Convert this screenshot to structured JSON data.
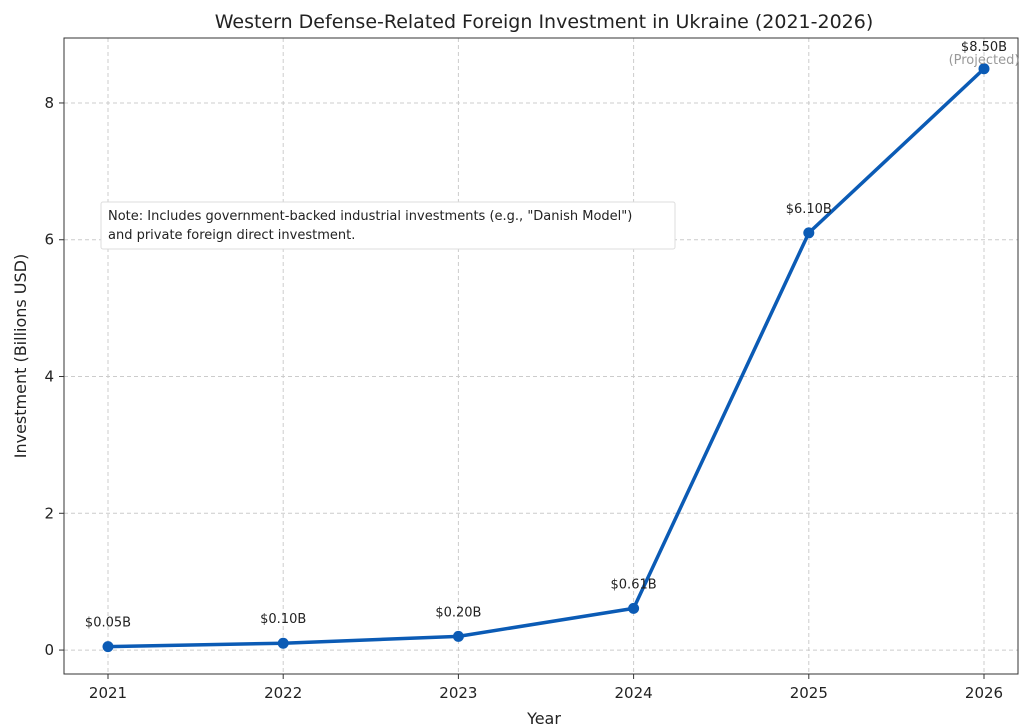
{
  "chart_data": {
    "type": "line",
    "title": "Western Defense-Related Foreign Investment in Ukraine (2021-2026)",
    "xlabel": "Year",
    "ylabel": "Investment (Billions USD)",
    "x": [
      "2021",
      "2022",
      "2023",
      "2024",
      "2025",
      "2026"
    ],
    "values": [
      0.05,
      0.1,
      0.2,
      0.61,
      6.1,
      8.5
    ],
    "data_labels": [
      "$0.05B",
      "$0.10B",
      "$0.20B",
      "$0.61B",
      "$6.10B",
      "$8.50B"
    ],
    "projected_label": "(Projected)",
    "ylim": [
      -0.35,
      8.95
    ],
    "yticks": [
      0,
      2,
      4,
      6,
      8
    ],
    "grid": true,
    "line_color": "#0b5bb5",
    "annotation": {
      "line1": "Note: Includes government-backed industrial investments (e.g., \"Danish Model\")",
      "line2": "and private foreign direct investment."
    }
  }
}
